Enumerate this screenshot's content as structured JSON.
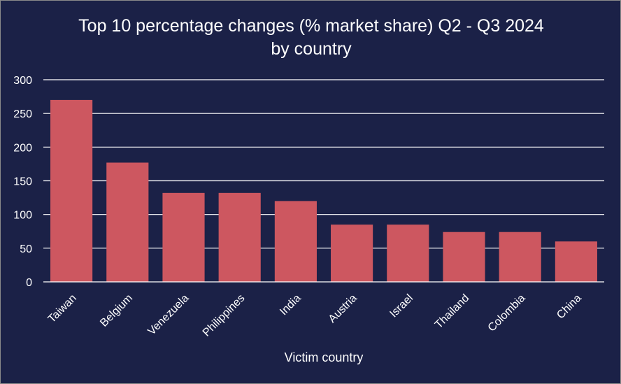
{
  "chart_data": {
    "type": "bar",
    "title_line1": "Top 10 percentage changes (% market share) Q2 - Q3 2024",
    "title_line2": "by country",
    "xlabel": "Victim country",
    "ylabel": "",
    "categories": [
      "Taiwan",
      "Belgium",
      "Venezuela",
      "Philippines",
      "India",
      "Austria",
      "Israel",
      "Thailand",
      "Colombia",
      "China"
    ],
    "values": [
      270,
      177,
      132,
      132,
      120,
      85,
      85,
      74,
      74,
      60
    ],
    "ylim": [
      0,
      300
    ],
    "yticks": [
      0,
      50,
      100,
      150,
      200,
      250,
      300
    ],
    "grid": true,
    "legend": "none",
    "bar_color": "#cd5760",
    "background_color": "#1b2147",
    "text_color": "#ffffff"
  }
}
